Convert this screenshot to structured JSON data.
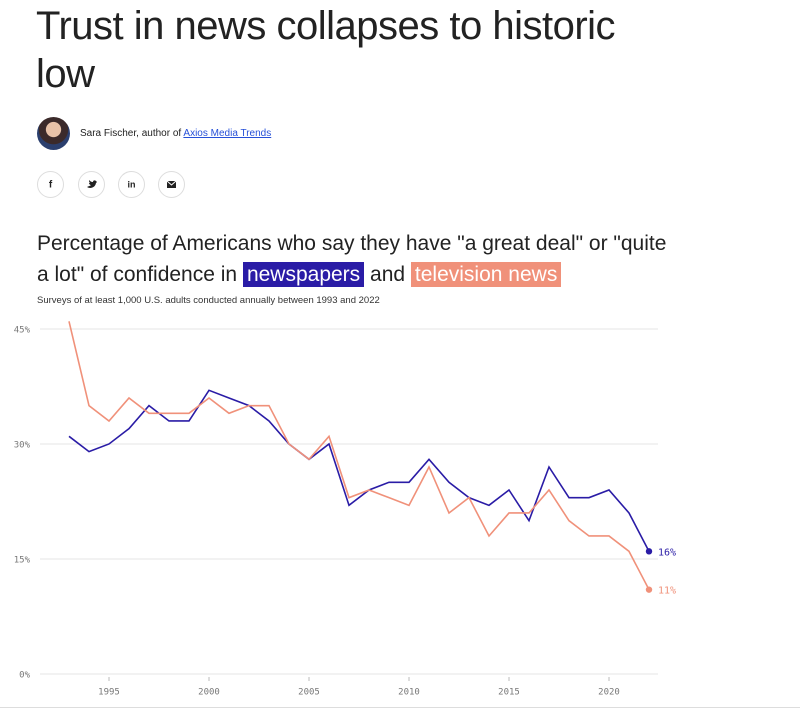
{
  "header": {
    "title": "Trust in news collapses to historic low",
    "byline": "Sara Fischer, author of",
    "byline_link": "Axios Media Trends",
    "share_buttons": [
      "f",
      "in"
    ]
  },
  "chart_data": {
    "type": "line",
    "title_parts": [
      "Percentage of Americans who say they have \"a great deal\" or \"quite a lot\" of confidence in",
      "and"
    ],
    "subtitle": "Surveys of at least 1,000 U.S. adults conducted annually between 1993 and 2022",
    "x": [
      1993,
      1994,
      1995,
      1996,
      1997,
      1998,
      1999,
      2000,
      2001,
      2002,
      2003,
      2004,
      2005,
      2006,
      2007,
      2008,
      2009,
      2010,
      2011,
      2012,
      2013,
      2014,
      2015,
      2016,
      2017,
      2018,
      2019,
      2020,
      2021,
      2022
    ],
    "series": [
      {
        "name": "newspapers",
        "color": "#2a1ca6",
        "values": [
          31,
          29,
          30,
          32,
          35,
          33,
          33,
          37,
          36,
          35,
          33,
          30,
          28,
          30,
          22,
          24,
          25,
          25,
          28,
          25,
          23,
          22,
          24,
          20,
          27,
          23,
          23,
          24,
          21,
          16
        ],
        "value_labels": [
          null,
          null,
          null,
          null,
          null,
          null,
          null,
          null,
          null,
          null,
          null,
          null,
          null,
          null,
          null,
          null,
          null,
          null,
          null,
          null,
          null,
          null,
          null,
          null,
          null,
          null,
          null,
          null,
          null,
          "16%"
        ]
      },
      {
        "name": "television news",
        "color": "#f0917a",
        "values": [
          46,
          35,
          33,
          36,
          34,
          34,
          34,
          36,
          34,
          35,
          35,
          30,
          28,
          31,
          23,
          24,
          23,
          22,
          27,
          21,
          23,
          18,
          21,
          21,
          24,
          20,
          18,
          18,
          16,
          11
        ],
        "value_labels": [
          null,
          null,
          null,
          null,
          null,
          null,
          null,
          null,
          null,
          null,
          null,
          null,
          null,
          null,
          null,
          null,
          null,
          null,
          null,
          null,
          null,
          null,
          null,
          null,
          null,
          null,
          null,
          null,
          null,
          "11%"
        ]
      }
    ],
    "xlim": [
      1991.55,
      2022.45
    ],
    "xticks": [
      1995,
      2000,
      2005,
      2010,
      2015,
      2020
    ],
    "ylim": [
      0,
      46
    ],
    "yticks": [
      {
        "value": 0,
        "label": "0%"
      },
      {
        "value": 15,
        "label": "15%"
      },
      {
        "value": 30,
        "label": "30%"
      },
      {
        "value": 45,
        "label": "45%"
      }
    ],
    "grid": true
  }
}
